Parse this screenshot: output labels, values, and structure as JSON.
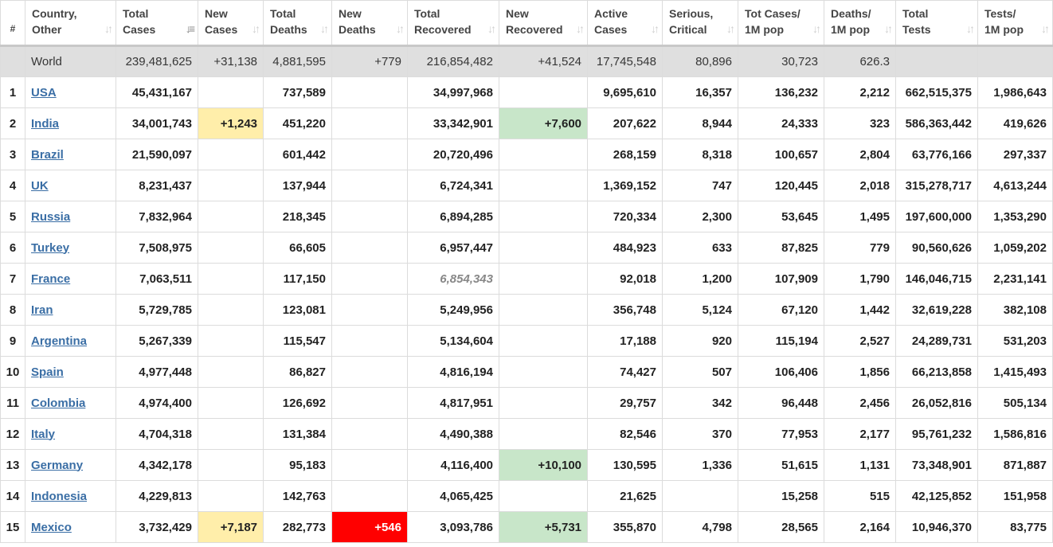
{
  "header": {
    "idx": "#",
    "country": [
      "Country,",
      "Other"
    ],
    "total_cases": [
      "Total",
      "Cases"
    ],
    "new_cases": [
      "New",
      "Cases"
    ],
    "total_deaths": [
      "Total",
      "Deaths"
    ],
    "new_deaths": [
      "New",
      "Deaths"
    ],
    "total_recovered": [
      "Total",
      "Recovered"
    ],
    "new_recovered": [
      "New",
      "Recovered"
    ],
    "active_cases": [
      "Active",
      "Cases"
    ],
    "serious": [
      "Serious,",
      "Critical"
    ],
    "cases_per_m": [
      "Tot Cases/",
      "1M pop"
    ],
    "deaths_per_m": [
      "Deaths/",
      "1M pop"
    ],
    "total_tests": [
      "Total",
      "Tests"
    ],
    "tests_per_m": [
      "Tests/",
      "1M pop"
    ]
  },
  "world": {
    "country": "World",
    "total_cases": "239,481,625",
    "new_cases": "+31,138",
    "total_deaths": "4,881,595",
    "new_deaths": "+779",
    "total_recovered": "216,854,482",
    "new_recovered": "+41,524",
    "active_cases": "17,745,548",
    "serious": "80,896",
    "cases_per_m": "30,723",
    "deaths_per_m": "626.3",
    "total_tests": "",
    "tests_per_m": ""
  },
  "rows": [
    {
      "idx": "1",
      "country": "USA",
      "total_cases": "45,431,167",
      "new_cases": "",
      "total_deaths": "737,589",
      "new_deaths": "",
      "total_recovered": "34,997,968",
      "new_recovered": "",
      "active_cases": "9,695,610",
      "serious": "16,357",
      "cases_per_m": "136,232",
      "deaths_per_m": "2,212",
      "total_tests": "662,515,375",
      "tests_per_m": "1,986,643"
    },
    {
      "idx": "2",
      "country": "India",
      "total_cases": "34,001,743",
      "new_cases": "+1,243",
      "total_deaths": "451,220",
      "new_deaths": "",
      "total_recovered": "33,342,901",
      "new_recovered": "+7,600",
      "active_cases": "207,622",
      "serious": "8,944",
      "cases_per_m": "24,333",
      "deaths_per_m": "323",
      "total_tests": "586,363,442",
      "tests_per_m": "419,626"
    },
    {
      "idx": "3",
      "country": "Brazil",
      "total_cases": "21,590,097",
      "new_cases": "",
      "total_deaths": "601,442",
      "new_deaths": "",
      "total_recovered": "20,720,496",
      "new_recovered": "",
      "active_cases": "268,159",
      "serious": "8,318",
      "cases_per_m": "100,657",
      "deaths_per_m": "2,804",
      "total_tests": "63,776,166",
      "tests_per_m": "297,337"
    },
    {
      "idx": "4",
      "country": "UK",
      "total_cases": "8,231,437",
      "new_cases": "",
      "total_deaths": "137,944",
      "new_deaths": "",
      "total_recovered": "6,724,341",
      "new_recovered": "",
      "active_cases": "1,369,152",
      "serious": "747",
      "cases_per_m": "120,445",
      "deaths_per_m": "2,018",
      "total_tests": "315,278,717",
      "tests_per_m": "4,613,244"
    },
    {
      "idx": "5",
      "country": "Russia",
      "total_cases": "7,832,964",
      "new_cases": "",
      "total_deaths": "218,345",
      "new_deaths": "",
      "total_recovered": "6,894,285",
      "new_recovered": "",
      "active_cases": "720,334",
      "serious": "2,300",
      "cases_per_m": "53,645",
      "deaths_per_m": "1,495",
      "total_tests": "197,600,000",
      "tests_per_m": "1,353,290"
    },
    {
      "idx": "6",
      "country": "Turkey",
      "total_cases": "7,508,975",
      "new_cases": "",
      "total_deaths": "66,605",
      "new_deaths": "",
      "total_recovered": "6,957,447",
      "new_recovered": "",
      "active_cases": "484,923",
      "serious": "633",
      "cases_per_m": "87,825",
      "deaths_per_m": "779",
      "total_tests": "90,560,626",
      "tests_per_m": "1,059,202"
    },
    {
      "idx": "7",
      "country": "France",
      "total_cases": "7,063,511",
      "new_cases": "",
      "total_deaths": "117,150",
      "new_deaths": "",
      "total_recovered": "6,854,343",
      "new_recovered": "",
      "active_cases": "92,018",
      "serious": "1,200",
      "cases_per_m": "107,909",
      "deaths_per_m": "1,790",
      "total_tests": "146,046,715",
      "tests_per_m": "2,231,141"
    },
    {
      "idx": "8",
      "country": "Iran",
      "total_cases": "5,729,785",
      "new_cases": "",
      "total_deaths": "123,081",
      "new_deaths": "",
      "total_recovered": "5,249,956",
      "new_recovered": "",
      "active_cases": "356,748",
      "serious": "5,124",
      "cases_per_m": "67,120",
      "deaths_per_m": "1,442",
      "total_tests": "32,619,228",
      "tests_per_m": "382,108"
    },
    {
      "idx": "9",
      "country": "Argentina",
      "total_cases": "5,267,339",
      "new_cases": "",
      "total_deaths": "115,547",
      "new_deaths": "",
      "total_recovered": "5,134,604",
      "new_recovered": "",
      "active_cases": "17,188",
      "serious": "920",
      "cases_per_m": "115,194",
      "deaths_per_m": "2,527",
      "total_tests": "24,289,731",
      "tests_per_m": "531,203"
    },
    {
      "idx": "10",
      "country": "Spain",
      "total_cases": "4,977,448",
      "new_cases": "",
      "total_deaths": "86,827",
      "new_deaths": "",
      "total_recovered": "4,816,194",
      "new_recovered": "",
      "active_cases": "74,427",
      "serious": "507",
      "cases_per_m": "106,406",
      "deaths_per_m": "1,856",
      "total_tests": "66,213,858",
      "tests_per_m": "1,415,493"
    },
    {
      "idx": "11",
      "country": "Colombia",
      "total_cases": "4,974,400",
      "new_cases": "",
      "total_deaths": "126,692",
      "new_deaths": "",
      "total_recovered": "4,817,951",
      "new_recovered": "",
      "active_cases": "29,757",
      "serious": "342",
      "cases_per_m": "96,448",
      "deaths_per_m": "2,456",
      "total_tests": "26,052,816",
      "tests_per_m": "505,134"
    },
    {
      "idx": "12",
      "country": "Italy",
      "total_cases": "4,704,318",
      "new_cases": "",
      "total_deaths": "131,384",
      "new_deaths": "",
      "total_recovered": "4,490,388",
      "new_recovered": "",
      "active_cases": "82,546",
      "serious": "370",
      "cases_per_m": "77,953",
      "deaths_per_m": "2,177",
      "total_tests": "95,761,232",
      "tests_per_m": "1,586,816"
    },
    {
      "idx": "13",
      "country": "Germany",
      "total_cases": "4,342,178",
      "new_cases": "",
      "total_deaths": "95,183",
      "new_deaths": "",
      "total_recovered": "4,116,400",
      "new_recovered": "+10,100",
      "active_cases": "130,595",
      "serious": "1,336",
      "cases_per_m": "51,615",
      "deaths_per_m": "1,131",
      "total_tests": "73,348,901",
      "tests_per_m": "871,887"
    },
    {
      "idx": "14",
      "country": "Indonesia",
      "total_cases": "4,229,813",
      "new_cases": "",
      "total_deaths": "142,763",
      "new_deaths": "",
      "total_recovered": "4,065,425",
      "new_recovered": "",
      "active_cases": "21,625",
      "serious": "",
      "cases_per_m": "15,258",
      "deaths_per_m": "515",
      "total_tests": "42,125,852",
      "tests_per_m": "151,958"
    },
    {
      "idx": "15",
      "country": "Mexico",
      "total_cases": "3,732,429",
      "new_cases": "+7,187",
      "total_deaths": "282,773",
      "new_deaths": "+546",
      "total_recovered": "3,093,786",
      "new_recovered": "+5,731",
      "active_cases": "355,870",
      "serious": "4,798",
      "cases_per_m": "28,565",
      "deaths_per_m": "2,164",
      "total_tests": "10,946,370",
      "tests_per_m": "83,775"
    }
  ],
  "colors": {
    "new_cases_highlight": "#ffeeaa",
    "new_recovered_highlight": "#c8e6c9",
    "new_deaths_highlight": "#ff0000",
    "world_row_bg": "#dfdfdf",
    "country_link": "#3a6ea5"
  },
  "icons": {
    "sort": "sort-arrows-icon",
    "sort_active": "sort-desc-icon"
  }
}
